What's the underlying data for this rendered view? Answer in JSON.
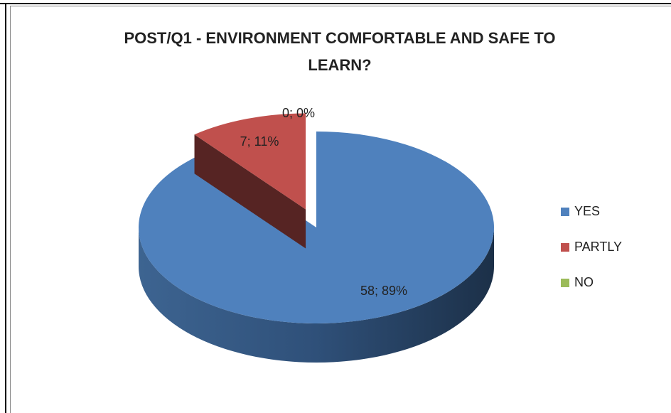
{
  "chart_data": {
    "type": "pie",
    "title_lines": [
      "POST/Q1 - ENVIRONMENT COMFORTABLE AND SAFE TO",
      "LEARN?"
    ],
    "categories": [
      "YES",
      "PARTLY",
      "NO"
    ],
    "values": [
      58,
      7,
      0
    ],
    "value_labels": [
      "58; 89%",
      "7; 11%",
      "0; 0%"
    ],
    "colors": [
      "#4f81bd",
      "#c0504d",
      "#9bbb59"
    ],
    "legend": "right"
  }
}
